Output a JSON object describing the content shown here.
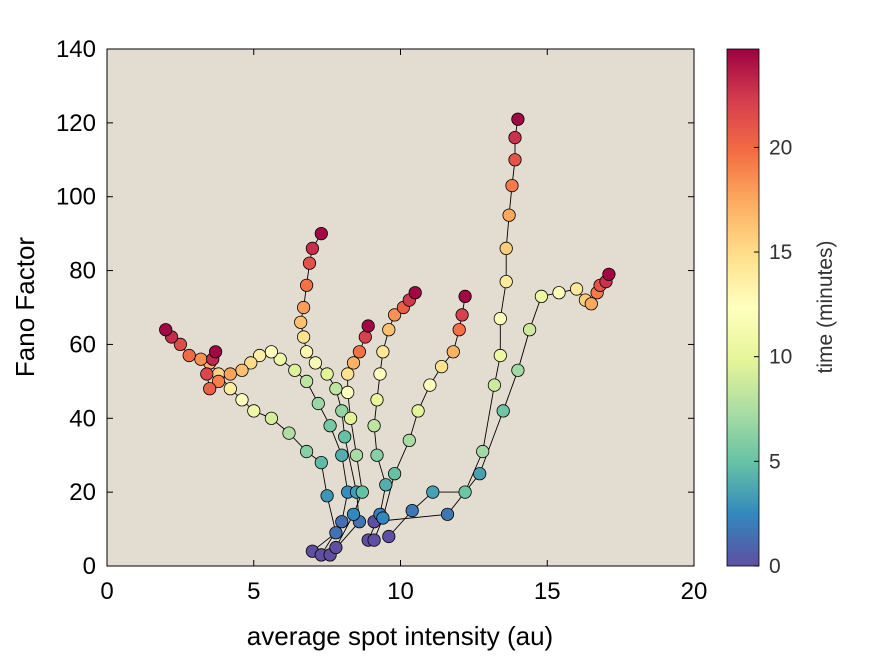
{
  "chart_data": {
    "type": "scatter",
    "xlabel": "average spot intensity (au)",
    "ylabel": "Fano Factor",
    "xlim": [
      0,
      20
    ],
    "ylim": [
      0,
      140
    ],
    "x_ticks": [
      0,
      5,
      10,
      15,
      20
    ],
    "y_ticks": [
      0,
      20,
      40,
      60,
      80,
      100,
      120,
      140
    ],
    "grid": false,
    "background": "#e3ddd1",
    "colorbar": {
      "label": "time (minutes)",
      "range": [
        0,
        24.7
      ],
      "ticks": [
        0,
        5,
        10,
        15,
        20
      ],
      "colormap": [
        "#5e4fa2",
        "#3288bd",
        "#66c2a5",
        "#abdda4",
        "#e6f598",
        "#ffffbf",
        "#fee08b",
        "#fdae61",
        "#f46d43",
        "#d53e4f",
        "#9e0142"
      ]
    },
    "trajectories": [
      {
        "points": [
          [
            7.0,
            4
          ],
          [
            7.8,
            9
          ],
          [
            7.5,
            19
          ],
          [
            7.3,
            28
          ],
          [
            6.8,
            31
          ],
          [
            6.2,
            36
          ],
          [
            5.6,
            40
          ],
          [
            5.0,
            42
          ],
          [
            4.6,
            45
          ],
          [
            4.2,
            48
          ],
          [
            3.8,
            52
          ],
          [
            3.5,
            55
          ],
          [
            3.2,
            56
          ],
          [
            2.8,
            57
          ],
          [
            2.5,
            60
          ],
          [
            2.2,
            62
          ],
          [
            2.0,
            64
          ]
        ],
        "t_end": 24.5
      },
      {
        "points": [
          [
            7.3,
            3
          ],
          [
            8.0,
            12
          ],
          [
            8.2,
            20
          ],
          [
            8.0,
            30
          ],
          [
            7.6,
            38
          ],
          [
            7.2,
            44
          ],
          [
            6.8,
            50
          ],
          [
            6.4,
            53
          ],
          [
            5.9,
            56
          ],
          [
            5.6,
            58
          ],
          [
            5.2,
            57
          ],
          [
            4.9,
            55
          ],
          [
            4.6,
            53
          ],
          [
            4.2,
            52
          ],
          [
            3.8,
            50
          ],
          [
            3.5,
            48
          ],
          [
            3.4,
            52
          ],
          [
            3.6,
            56
          ],
          [
            3.7,
            58
          ]
        ],
        "t_end": 24.5
      },
      {
        "points": [
          [
            7.6,
            3
          ],
          [
            8.6,
            12
          ],
          [
            8.5,
            20
          ],
          [
            8.1,
            35
          ],
          [
            8.0,
            42
          ],
          [
            7.8,
            48
          ],
          [
            7.5,
            52
          ],
          [
            7.1,
            55
          ],
          [
            6.8,
            58
          ],
          [
            6.7,
            62
          ],
          [
            6.6,
            66
          ],
          [
            6.7,
            70
          ],
          [
            6.8,
            76
          ],
          [
            6.9,
            82
          ],
          [
            7.0,
            86
          ],
          [
            7.3,
            90
          ]
        ],
        "t_end": 24.5
      },
      {
        "points": [
          [
            7.8,
            5
          ],
          [
            8.4,
            14
          ],
          [
            8.7,
            20
          ],
          [
            8.5,
            30
          ],
          [
            8.3,
            40
          ],
          [
            8.2,
            47
          ],
          [
            8.2,
            52
          ],
          [
            8.4,
            55
          ],
          [
            8.6,
            58
          ],
          [
            8.8,
            62
          ],
          [
            8.9,
            65
          ]
        ],
        "t_end": 24.5
      },
      {
        "points": [
          [
            8.9,
            7
          ],
          [
            9.3,
            14
          ],
          [
            9.5,
            22
          ],
          [
            9.2,
            30
          ],
          [
            9.1,
            38
          ],
          [
            9.2,
            45
          ],
          [
            9.3,
            52
          ],
          [
            9.4,
            58
          ],
          [
            9.6,
            64
          ],
          [
            9.8,
            68
          ],
          [
            10.1,
            70
          ],
          [
            10.3,
            72
          ],
          [
            10.5,
            74
          ]
        ],
        "t_end": 24.5
      },
      {
        "points": [
          [
            9.1,
            7
          ],
          [
            9.4,
            13
          ],
          [
            9.8,
            25
          ],
          [
            10.3,
            34
          ],
          [
            10.6,
            42
          ],
          [
            11.0,
            49
          ],
          [
            11.4,
            54
          ],
          [
            11.8,
            58
          ],
          [
            12.0,
            64
          ],
          [
            12.1,
            68
          ],
          [
            12.2,
            73
          ]
        ],
        "t_end": 24.5
      },
      {
        "points": [
          [
            9.6,
            8
          ],
          [
            10.4,
            15
          ],
          [
            11.1,
            20
          ],
          [
            12.2,
            20
          ],
          [
            12.8,
            31
          ],
          [
            13.2,
            49
          ],
          [
            13.4,
            57
          ],
          [
            13.4,
            67
          ],
          [
            13.6,
            77
          ],
          [
            13.6,
            86
          ],
          [
            13.7,
            95
          ],
          [
            13.8,
            103
          ],
          [
            13.9,
            110
          ],
          [
            13.9,
            116
          ],
          [
            14.0,
            121
          ]
        ],
        "t_end": 24.5
      },
      {
        "points": [
          [
            9.1,
            12
          ],
          [
            11.6,
            14
          ],
          [
            12.7,
            25
          ],
          [
            13.5,
            42
          ],
          [
            14.0,
            53
          ],
          [
            14.4,
            64
          ],
          [
            14.8,
            73
          ],
          [
            15.4,
            74
          ],
          [
            16.0,
            75
          ],
          [
            16.3,
            72
          ],
          [
            16.5,
            71
          ],
          [
            16.7,
            74
          ],
          [
            16.8,
            76
          ],
          [
            17.0,
            77
          ],
          [
            17.1,
            79
          ]
        ],
        "t_end": 24.5
      }
    ]
  }
}
